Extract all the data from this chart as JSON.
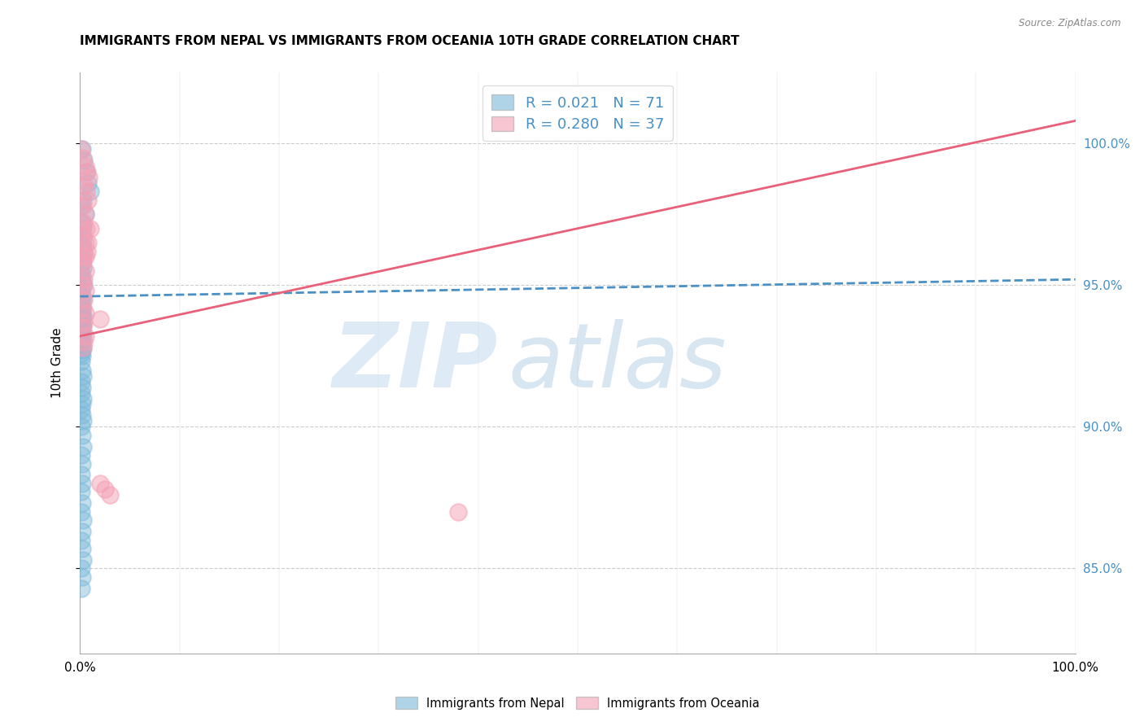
{
  "title": "IMMIGRANTS FROM NEPAL VS IMMIGRANTS FROM OCEANIA 10TH GRADE CORRELATION CHART",
  "source": "Source: ZipAtlas.com",
  "ylabel": "10th Grade",
  "nepal_R": "0.021",
  "nepal_N": "71",
  "oceania_R": "0.280",
  "oceania_N": "37",
  "nepal_color": "#7ab8d9",
  "oceania_color": "#f4a0b5",
  "nepal_trend_color": "#4a90c4",
  "oceania_trend_color": "#e8607a",
  "watermark_zip": "ZIP",
  "watermark_atlas": "atlas",
  "xlim": [
    0.0,
    1.0
  ],
  "ylim": [
    0.82,
    1.025
  ],
  "yticks": [
    0.85,
    0.9,
    0.95,
    1.0
  ],
  "ytick_labels": [
    "85.0%",
    "90.0%",
    "95.0%",
    "100.0%"
  ],
  "xtick_labels": [
    "0.0%",
    "100.0%"
  ],
  "nepal_trend_x": [
    0.0,
    1.0
  ],
  "nepal_trend_y": [
    0.946,
    0.952
  ],
  "oceania_trend_x": [
    0.0,
    1.0
  ],
  "oceania_trend_y": [
    0.932,
    1.008
  ],
  "nepal_x": [
    0.002,
    0.004,
    0.006,
    0.008,
    0.01,
    0.003,
    0.001,
    0.005,
    0.002,
    0.003,
    0.001,
    0.003,
    0.002,
    0.004,
    0.001,
    0.002,
    0.003,
    0.001,
    0.002,
    0.004,
    0.001,
    0.002,
    0.003,
    0.001,
    0.002,
    0.001,
    0.002,
    0.003,
    0.002,
    0.001,
    0.003,
    0.002,
    0.001,
    0.002,
    0.003,
    0.001,
    0.002,
    0.001,
    0.003,
    0.002,
    0.001,
    0.002,
    0.001,
    0.002,
    0.003,
    0.001,
    0.002,
    0.001,
    0.003,
    0.002,
    0.001,
    0.002,
    0.003,
    0.001,
    0.002,
    0.003,
    0.001,
    0.002,
    0.001,
    0.002,
    0.001,
    0.002,
    0.001,
    0.003,
    0.002,
    0.001,
    0.002,
    0.003,
    0.001,
    0.002,
    0.001
  ],
  "nepal_y": [
    0.998,
    0.994,
    0.99,
    0.986,
    0.983,
    0.98,
    0.978,
    0.975,
    0.972,
    0.97,
    0.968,
    0.966,
    0.964,
    0.962,
    0.96,
    0.958,
    0.956,
    0.954,
    0.952,
    0.95,
    0.948,
    0.946,
    0.945,
    0.944,
    0.942,
    0.941,
    0.94,
    0.939,
    0.938,
    0.937,
    0.936,
    0.935,
    0.934,
    0.933,
    0.932,
    0.931,
    0.93,
    0.929,
    0.928,
    0.927,
    0.926,
    0.925,
    0.923,
    0.92,
    0.918,
    0.916,
    0.914,
    0.912,
    0.91,
    0.908,
    0.906,
    0.904,
    0.902,
    0.9,
    0.897,
    0.893,
    0.89,
    0.887,
    0.883,
    0.88,
    0.877,
    0.873,
    0.87,
    0.867,
    0.863,
    0.86,
    0.857,
    0.853,
    0.85,
    0.847,
    0.843
  ],
  "oceania_x": [
    0.001,
    0.003,
    0.005,
    0.007,
    0.009,
    0.004,
    0.006,
    0.008,
    0.003,
    0.005,
    0.004,
    0.006,
    0.003,
    0.005,
    0.007,
    0.004,
    0.003,
    0.005,
    0.004,
    0.003,
    0.005,
    0.004,
    0.003,
    0.005,
    0.004,
    0.003,
    0.005,
    0.004,
    0.003,
    0.02,
    0.025,
    0.03,
    0.38,
    0.02,
    0.01,
    0.008,
    0.005
  ],
  "oceania_y": [
    0.998,
    0.995,
    0.992,
    0.99,
    0.988,
    0.985,
    0.983,
    0.98,
    0.978,
    0.975,
    0.972,
    0.97,
    0.968,
    0.965,
    0.962,
    0.96,
    0.958,
    0.955,
    0.952,
    0.95,
    0.948,
    0.945,
    0.942,
    0.94,
    0.937,
    0.935,
    0.932,
    0.93,
    0.928,
    0.88,
    0.878,
    0.876,
    0.87,
    0.938,
    0.97,
    0.965,
    0.96
  ]
}
